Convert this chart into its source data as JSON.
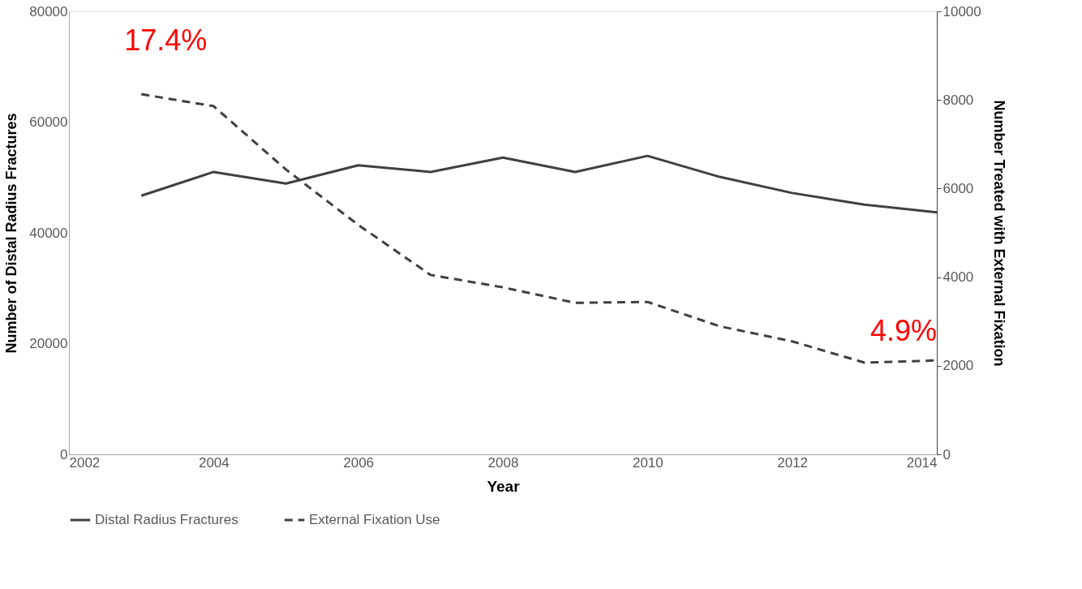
{
  "chart_data": {
    "type": "line",
    "xlabel": "Year",
    "ylabel": "Number of Distal Radius Fractures",
    "y2label": "Number Treated with External Fixation",
    "x": [
      2003,
      2004,
      2005,
      2006,
      2007,
      2008,
      2009,
      2010,
      2011,
      2012,
      2013,
      2014
    ],
    "series": [
      {
        "name": "Distal Radius Fractures",
        "color": "#404040",
        "line_style": "solid",
        "values": [
          46700,
          51000,
          48900,
          52200,
          51000,
          53600,
          51000,
          53900,
          50100,
          47200,
          45100,
          43700
        ]
      },
      {
        "name": "External Fixation Use",
        "color": "#404040",
        "line_style": "dashed",
        "axis": "y2",
        "values": [
          8130,
          7860,
          6430,
          5180,
          4050,
          3770,
          3420,
          3440,
          2890,
          2550,
          2070,
          2120
        ]
      }
    ],
    "xlim": [
      2002,
      2014
    ],
    "xticks": [
      2002,
      2004,
      2006,
      2008,
      2010,
      2012,
      2014
    ],
    "ylim": [
      0,
      80000
    ],
    "yticks": [
      0,
      20000,
      40000,
      60000,
      80000
    ],
    "y2lim": [
      0,
      10000
    ],
    "y2ticks": [
      0,
      2000,
      4000,
      6000,
      8000,
      10000
    ],
    "annotations": [
      "17.4%",
      "4.9%"
    ],
    "grid": false,
    "legend": "bottom",
    "marker": "none"
  }
}
